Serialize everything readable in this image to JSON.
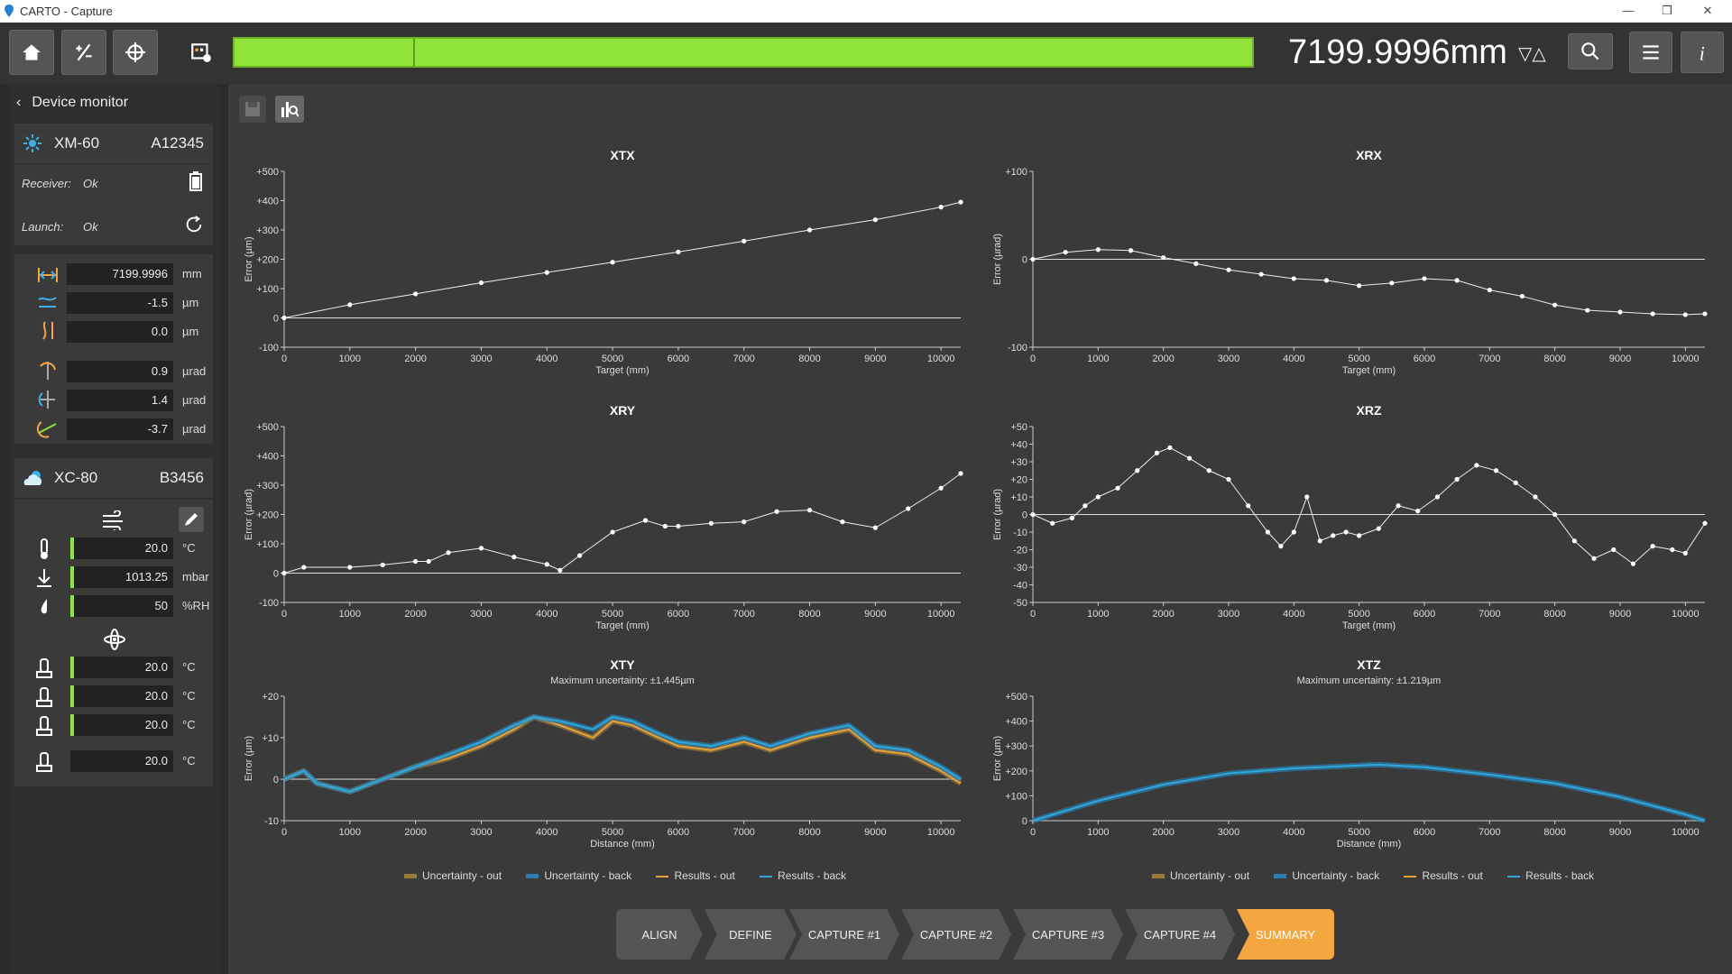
{
  "window": {
    "title": "CARTO - Capture",
    "min": "—",
    "max": "❐",
    "close": "✕"
  },
  "toolbar": {
    "readout": "7199.9996mm",
    "direction_arrows": "▽△"
  },
  "sidebar": {
    "header": "Device monitor",
    "laser": {
      "name": "XM-60",
      "serial": "A12345",
      "receiver_label": "Receiver:",
      "receiver_status": "Ok",
      "launch_label": "Launch:",
      "launch_status": "Ok",
      "values": [
        {
          "value": "7199.9996",
          "unit": "mm"
        },
        {
          "value": "-1.5",
          "unit": "µm"
        },
        {
          "value": "0.0",
          "unit": "µm"
        },
        {
          "value": "0.9",
          "unit": "µrad"
        },
        {
          "value": "1.4",
          "unit": "µrad"
        },
        {
          "value": "-3.7",
          "unit": "µrad"
        }
      ]
    },
    "compensator": {
      "name": "XC-80",
      "serial": "B3456",
      "env_values": [
        {
          "value": "20.0",
          "unit": "°C"
        },
        {
          "value": "1013.25",
          "unit": "mbar"
        },
        {
          "value": "50",
          "unit": "%RH"
        }
      ],
      "material_values": [
        {
          "value": "20.0",
          "unit": "°C"
        },
        {
          "value": "20.0",
          "unit": "°C"
        },
        {
          "value": "20.0",
          "unit": "°C"
        },
        {
          "value": "20.0",
          "unit": "°C"
        }
      ]
    }
  },
  "colors": {
    "accent_green": "#8fe33b",
    "accent_orange": "#f4a640",
    "results_out": "#e8a23a",
    "results_back": "#2fa8dc",
    "uncertainty_out": "#9a7a3a",
    "uncertainty_back": "#2a7fb0"
  },
  "chart_data": [
    {
      "id": "XTX",
      "type": "scatter",
      "title": "XTX",
      "xlabel": "Target (mm)",
      "ylabel": "Error (µm)",
      "xlim": [
        0,
        10300
      ],
      "ylim": [
        -100,
        500
      ],
      "xticks": [
        "0",
        "1000",
        "2000",
        "3000",
        "4000",
        "5000",
        "6000",
        "7000",
        "8000",
        "9000",
        "10000"
      ],
      "yticks": [
        "-100",
        "0",
        "+100",
        "+200",
        "+300",
        "+400",
        "+500"
      ],
      "x": [
        0,
        1000,
        2000,
        3000,
        4000,
        5000,
        6000,
        7000,
        8000,
        9000,
        10000,
        10300
      ],
      "y": [
        0,
        45,
        82,
        120,
        155,
        190,
        225,
        262,
        300,
        335,
        378,
        395
      ]
    },
    {
      "id": "XRX",
      "type": "scatter",
      "title": "XRX",
      "xlabel": "Target (mm)",
      "ylabel": "Error (µrad)",
      "xlim": [
        0,
        10300
      ],
      "ylim": [
        -100,
        100
      ],
      "xticks": [
        "0",
        "1000",
        "2000",
        "3000",
        "4000",
        "5000",
        "6000",
        "7000",
        "8000",
        "9000",
        "10000"
      ],
      "yticks": [
        "-100",
        "0",
        "+100"
      ],
      "x": [
        0,
        500,
        1000,
        1500,
        2000,
        2500,
        3000,
        3500,
        4000,
        4500,
        5000,
        5500,
        6000,
        6500,
        7000,
        7500,
        8000,
        8500,
        9000,
        9500,
        10000,
        10300
      ],
      "y": [
        0,
        8,
        11,
        10,
        2,
        -5,
        -12,
        -17,
        -22,
        -24,
        -30,
        -27,
        -22,
        -24,
        -35,
        -42,
        -52,
        -58,
        -60,
        -62,
        -63,
        -62
      ]
    },
    {
      "id": "XRY",
      "type": "scatter",
      "title": "XRY",
      "xlabel": "Target (mm)",
      "ylabel": "Error (µrad)",
      "xlim": [
        0,
        10300
      ],
      "ylim": [
        -100,
        500
      ],
      "xticks": [
        "0",
        "1000",
        "2000",
        "3000",
        "4000",
        "5000",
        "6000",
        "7000",
        "8000",
        "9000",
        "10000"
      ],
      "yticks": [
        "-100",
        "0",
        "+100",
        "+200",
        "+300",
        "+400",
        "+500"
      ],
      "x": [
        0,
        300,
        1000,
        1500,
        2000,
        2200,
        2500,
        3000,
        3500,
        4000,
        4200,
        4500,
        5000,
        5500,
        5800,
        6000,
        6500,
        7000,
        7500,
        8000,
        8500,
        9000,
        9500,
        10000,
        10300
      ],
      "y": [
        0,
        20,
        20,
        28,
        40,
        40,
        70,
        85,
        55,
        30,
        10,
        60,
        140,
        180,
        160,
        160,
        170,
        175,
        210,
        215,
        175,
        155,
        220,
        290,
        340
      ]
    },
    {
      "id": "XRZ",
      "type": "scatter",
      "title": "XRZ",
      "xlabel": "Target (mm)",
      "ylabel": "Error (µrad)",
      "xlim": [
        0,
        10300
      ],
      "ylim": [
        -50,
        50
      ],
      "xticks": [
        "0",
        "1000",
        "2000",
        "3000",
        "4000",
        "5000",
        "6000",
        "7000",
        "8000",
        "9000",
        "10000"
      ],
      "yticks": [
        "-50",
        "-40",
        "-30",
        "-20",
        "-10",
        "0",
        "+10",
        "+20",
        "+30",
        "+40",
        "+50"
      ],
      "x": [
        0,
        300,
        600,
        800,
        1000,
        1300,
        1600,
        1900,
        2100,
        2400,
        2700,
        3000,
        3300,
        3600,
        3800,
        4000,
        4200,
        4400,
        4600,
        4800,
        5000,
        5300,
        5600,
        5900,
        6200,
        6500,
        6800,
        7100,
        7400,
        7700,
        8000,
        8300,
        8600,
        8900,
        9200,
        9500,
        9800,
        10000,
        10300
      ],
      "y": [
        0,
        -5,
        -2,
        5,
        10,
        15,
        25,
        35,
        38,
        32,
        25,
        20,
        5,
        -10,
        -18,
        -10,
        10,
        -15,
        -12,
        -10,
        -12,
        -8,
        5,
        2,
        10,
        20,
        28,
        25,
        18,
        10,
        0,
        -15,
        -25,
        -20,
        -28,
        -18,
        -20,
        -22,
        -5
      ]
    },
    {
      "id": "XTY",
      "type": "line",
      "title": "XTY",
      "subtitle": "Maximum uncertainty: ±1.445µm",
      "xlabel": "Distance (mm)",
      "ylabel": "Error (µm)",
      "xlim": [
        0,
        10300
      ],
      "ylim": [
        -10,
        20
      ],
      "xticks": [
        "0",
        "1000",
        "2000",
        "3000",
        "4000",
        "5000",
        "6000",
        "7000",
        "8000",
        "9000",
        "10000"
      ],
      "yticks": [
        "-10",
        "0",
        "+10",
        "+20"
      ],
      "x": [
        0,
        300,
        500,
        1000,
        1500,
        2000,
        2500,
        3000,
        3500,
        3800,
        4200,
        4700,
        5000,
        5300,
        5700,
        6000,
        6500,
        7000,
        7400,
        8000,
        8600,
        9000,
        9500,
        10000,
        10300
      ],
      "series": [
        {
          "name": "Results - out",
          "values": [
            0,
            2,
            -1,
            -3,
            0,
            3,
            5,
            8,
            12,
            15,
            13,
            10,
            14,
            13,
            10,
            8,
            7,
            9,
            7,
            10,
            12,
            7,
            6,
            2,
            -1
          ]
        },
        {
          "name": "Results - back",
          "values": [
            0,
            2,
            -1,
            -3,
            0,
            3,
            6,
            9,
            13,
            15,
            14,
            12,
            15,
            14,
            11,
            9,
            8,
            10,
            8,
            11,
            13,
            8,
            7,
            3,
            0
          ]
        }
      ],
      "legend": [
        "Uncertainty - out",
        "Uncertainty - back",
        "Results - out",
        "Results - back"
      ]
    },
    {
      "id": "XTZ",
      "type": "line",
      "title": "XTZ",
      "subtitle": "Maximum uncertainty: ±1.219µm",
      "xlabel": "Distance (mm)",
      "ylabel": "Error (µm)",
      "xlim": [
        0,
        10300
      ],
      "ylim": [
        0,
        500
      ],
      "xticks": [
        "0",
        "1000",
        "2000",
        "3000",
        "4000",
        "5000",
        "6000",
        "7000",
        "8000",
        "9000",
        "10000"
      ],
      "yticks": [
        "0",
        "+100",
        "+200",
        "+300",
        "+400",
        "+500"
      ],
      "x": [
        0,
        1000,
        2000,
        3000,
        4000,
        5000,
        5300,
        6000,
        7000,
        8000,
        9000,
        10000,
        10300
      ],
      "series": [
        {
          "name": "Results - back",
          "values": [
            0,
            80,
            145,
            190,
            210,
            222,
            225,
            215,
            185,
            150,
            95,
            25,
            0
          ]
        }
      ],
      "legend": [
        "Uncertainty - out",
        "Uncertainty - back",
        "Results - out",
        "Results - back"
      ]
    }
  ],
  "steps": [
    "ALIGN",
    "DEFINE",
    "CAPTURE #1",
    "CAPTURE #2",
    "CAPTURE #3",
    "CAPTURE #4",
    "SUMMARY"
  ]
}
